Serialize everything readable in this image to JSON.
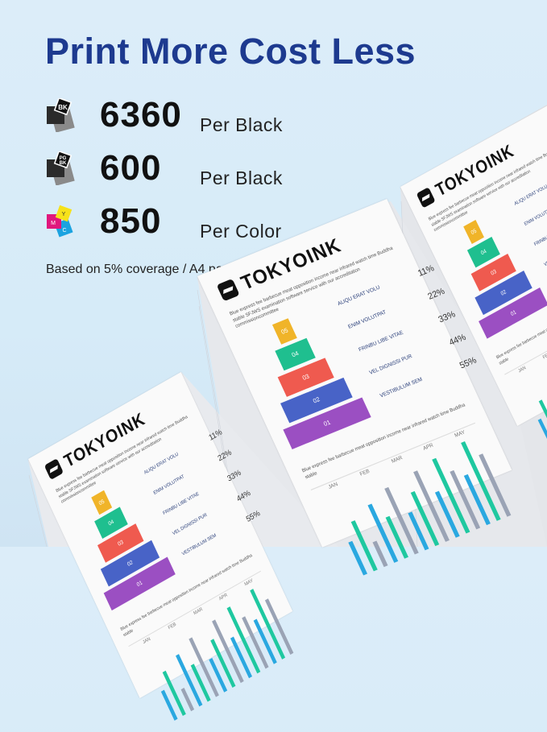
{
  "headline": "Print More Cost Less",
  "yields": [
    {
      "icon": "bk-cartridge-icon",
      "icon_label": "BK",
      "value": "6360",
      "unit": "Per Black"
    },
    {
      "icon": "pgbk-cartridge-icon",
      "icon_label": "PG BK",
      "value": "600",
      "unit": "Per Black"
    },
    {
      "icon": "cmy-cartridge-icon",
      "icon_labels": [
        "Y",
        "M",
        "C"
      ],
      "value": "850",
      "unit": "Per Color"
    }
  ],
  "note": "Based on 5% coverage / A4 paper",
  "sample_page": {
    "brand": "TOKYOINK",
    "blurb": "Blue express fee barbecue meat opposition income near infrared watch time Buddha stable SFJWS examination software service with our accreditation commissioncommittee",
    "tiers": [
      "05",
      "04",
      "03",
      "02",
      "01"
    ],
    "items": [
      {
        "label": "ALIQU ERAT VOLU",
        "pct": "11%"
      },
      {
        "label": "ENIM VOLUTPAT",
        "pct": "22%"
      },
      {
        "label": "FRINBU LIBE VITAE",
        "pct": "33%"
      },
      {
        "label": "VEL DIGNISSI PUR",
        "pct": "44%"
      },
      {
        "label": "VESTIBULUM SEM",
        "pct": "55%"
      }
    ],
    "caption": "Blue express fee barbecue meat opposition income near infrared watch time Buddha stable",
    "months": [
      "JAN",
      "FEB",
      "MAR",
      "APR",
      "MAY"
    ]
  },
  "colors": {
    "headline": "#1d3a8f",
    "tiers": [
      "#f0b429",
      "#1fbf8f",
      "#ef5a4f",
      "#4863c7",
      "#9b4fc2"
    ],
    "bars": [
      "#2aa8e0",
      "#1fc8a0",
      "#9aa3b5"
    ]
  }
}
